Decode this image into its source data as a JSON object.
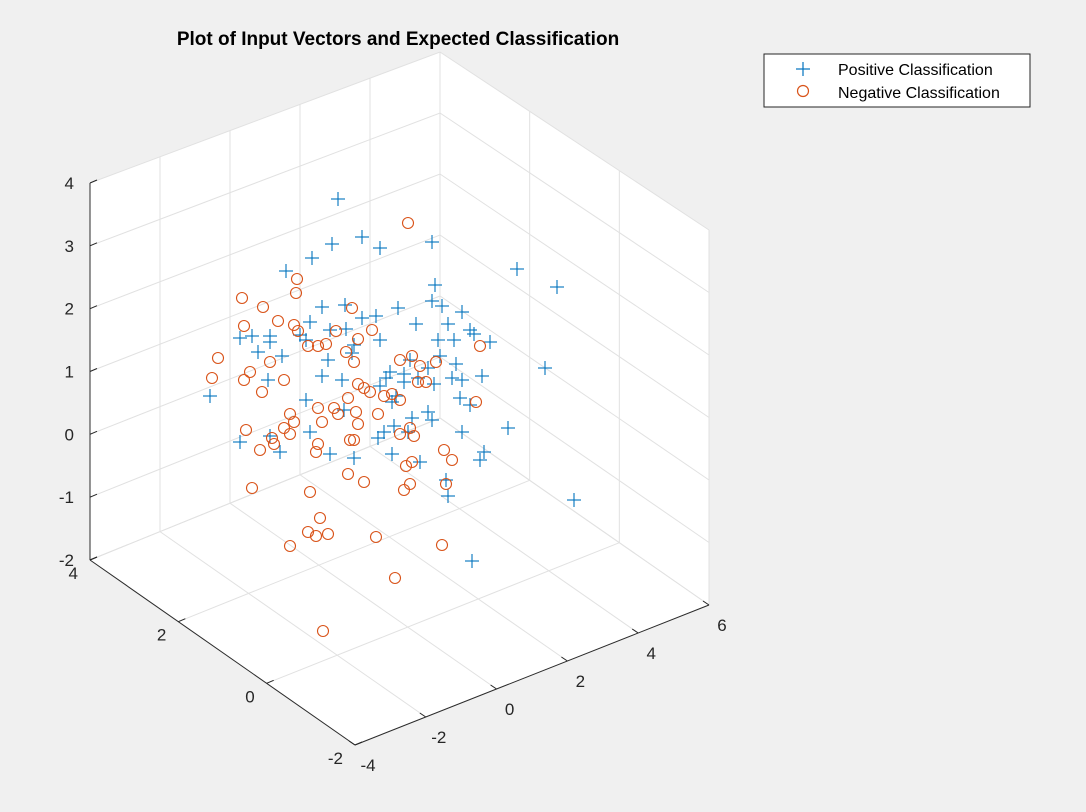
{
  "chart_data": {
    "type": "scatter3d",
    "title": "Plot of Input Vectors and Expected Classification",
    "xlim": [
      -4,
      6
    ],
    "ylim": [
      -2,
      4
    ],
    "zlim": [
      -2,
      4
    ],
    "x_ticks": [
      "-4",
      "-2",
      "0",
      "2",
      "4",
      "6"
    ],
    "y_ticks": [
      "-2",
      "0",
      "2",
      "4"
    ],
    "z_ticks": [
      "-2",
      "-1",
      "0",
      "1",
      "2",
      "3",
      "4"
    ],
    "grid": true,
    "legend_position": "top-right",
    "series": [
      {
        "name": "Positive Classification",
        "marker": "plus",
        "color": "#0072bd",
        "points": [
          [
            338,
            199
          ],
          [
            362,
            237
          ],
          [
            332,
            244
          ],
          [
            380,
            248
          ],
          [
            432,
            242
          ],
          [
            312,
            258
          ],
          [
            286,
            271
          ],
          [
            517,
            269
          ],
          [
            557,
            287
          ],
          [
            435,
            285
          ],
          [
            432,
            301
          ],
          [
            442,
            306
          ],
          [
            462,
            312
          ],
          [
            345,
            305
          ],
          [
            322,
            307
          ],
          [
            310,
            322
          ],
          [
            398,
            308
          ],
          [
            376,
            316
          ],
          [
            362,
            318
          ],
          [
            346,
            329
          ],
          [
            330,
            330
          ],
          [
            416,
            324
          ],
          [
            448,
            324
          ],
          [
            470,
            330
          ],
          [
            474,
            334
          ],
          [
            490,
            342
          ],
          [
            454,
            340
          ],
          [
            438,
            340
          ],
          [
            380,
            340
          ],
          [
            354,
            345
          ],
          [
            352,
            353
          ],
          [
            328,
            360
          ],
          [
            300,
            335
          ],
          [
            270,
            336
          ],
          [
            252,
            336
          ],
          [
            240,
            338
          ],
          [
            258,
            352
          ],
          [
            270,
            342
          ],
          [
            282,
            356
          ],
          [
            268,
            380
          ],
          [
            306,
            340
          ],
          [
            440,
            356
          ],
          [
            456,
            364
          ],
          [
            428,
            368
          ],
          [
            410,
            360
          ],
          [
            404,
            374
          ],
          [
            390,
            372
          ],
          [
            386,
            378
          ],
          [
            380,
            386
          ],
          [
            322,
            376
          ],
          [
            342,
            380
          ],
          [
            404,
            382
          ],
          [
            418,
            378
          ],
          [
            434,
            384
          ],
          [
            452,
            378
          ],
          [
            462,
            380
          ],
          [
            482,
            376
          ],
          [
            545,
            368
          ],
          [
            460,
            398
          ],
          [
            470,
            405
          ],
          [
            428,
            412
          ],
          [
            396,
            396
          ],
          [
            392,
            402
          ],
          [
            306,
            400
          ],
          [
            344,
            410
          ],
          [
            412,
            418
          ],
          [
            432,
            420
          ],
          [
            394,
            426
          ],
          [
            408,
            432
          ],
          [
            384,
            432
          ],
          [
            378,
            438
          ],
          [
            462,
            432
          ],
          [
            508,
            428
          ],
          [
            310,
            432
          ],
          [
            270,
            436
          ],
          [
            280,
            452
          ],
          [
            330,
            454
          ],
          [
            354,
            458
          ],
          [
            392,
            454
          ],
          [
            420,
            462
          ],
          [
            446,
            480
          ],
          [
            484,
            452
          ],
          [
            480,
            460
          ],
          [
            448,
            496
          ],
          [
            574,
            500
          ],
          [
            472,
            561
          ],
          [
            210,
            396
          ],
          [
            240,
            442
          ]
        ]
      },
      {
        "name": "Negative Classification",
        "marker": "circle",
        "color": "#d95319",
        "points": [
          [
            408,
            223
          ],
          [
            297,
            279
          ],
          [
            296,
            293
          ],
          [
            242,
            298
          ],
          [
            263,
            307
          ],
          [
            352,
            308
          ],
          [
            244,
            326
          ],
          [
            278,
            321
          ],
          [
            294,
            325
          ],
          [
            298,
            331
          ],
          [
            336,
            331
          ],
          [
            358,
            339
          ],
          [
            372,
            330
          ],
          [
            480,
            346
          ],
          [
            218,
            358
          ],
          [
            212,
            378
          ],
          [
            244,
            380
          ],
          [
            250,
            372
          ],
          [
            270,
            362
          ],
          [
            284,
            380
          ],
          [
            262,
            392
          ],
          [
            308,
            346
          ],
          [
            318,
            346
          ],
          [
            326,
            344
          ],
          [
            346,
            352
          ],
          [
            354,
            362
          ],
          [
            358,
            384
          ],
          [
            364,
            388
          ],
          [
            348,
            398
          ],
          [
            356,
            412
          ],
          [
            370,
            392
          ],
          [
            384,
            396
          ],
          [
            392,
            394
          ],
          [
            400,
            400
          ],
          [
            378,
            414
          ],
          [
            400,
            360
          ],
          [
            412,
            356
          ],
          [
            420,
            366
          ],
          [
            418,
            382
          ],
          [
            426,
            382
          ],
          [
            436,
            362
          ],
          [
            318,
            408
          ],
          [
            334,
            408
          ],
          [
            338,
            414
          ],
          [
            322,
            422
          ],
          [
            358,
            424
          ],
          [
            354,
            440
          ],
          [
            350,
            440
          ],
          [
            318,
            444
          ],
          [
            316,
            452
          ],
          [
            400,
            434
          ],
          [
            410,
            428
          ],
          [
            414,
            436
          ],
          [
            406,
            466
          ],
          [
            412,
            462
          ],
          [
            404,
            490
          ],
          [
            410,
            484
          ],
          [
            348,
            474
          ],
          [
            364,
            482
          ],
          [
            446,
            484
          ],
          [
            444,
            450
          ],
          [
            452,
            460
          ],
          [
            476,
            402
          ],
          [
            290,
            414
          ],
          [
            294,
            422
          ],
          [
            284,
            428
          ],
          [
            290,
            434
          ],
          [
            272,
            438
          ],
          [
            274,
            444
          ],
          [
            260,
            450
          ],
          [
            246,
            430
          ],
          [
            252,
            488
          ],
          [
            310,
            492
          ],
          [
            320,
            518
          ],
          [
            308,
            532
          ],
          [
            316,
            536
          ],
          [
            328,
            534
          ],
          [
            290,
            546
          ],
          [
            376,
            537
          ],
          [
            442,
            545
          ],
          [
            395,
            578
          ],
          [
            323,
            631
          ]
        ]
      }
    ]
  }
}
